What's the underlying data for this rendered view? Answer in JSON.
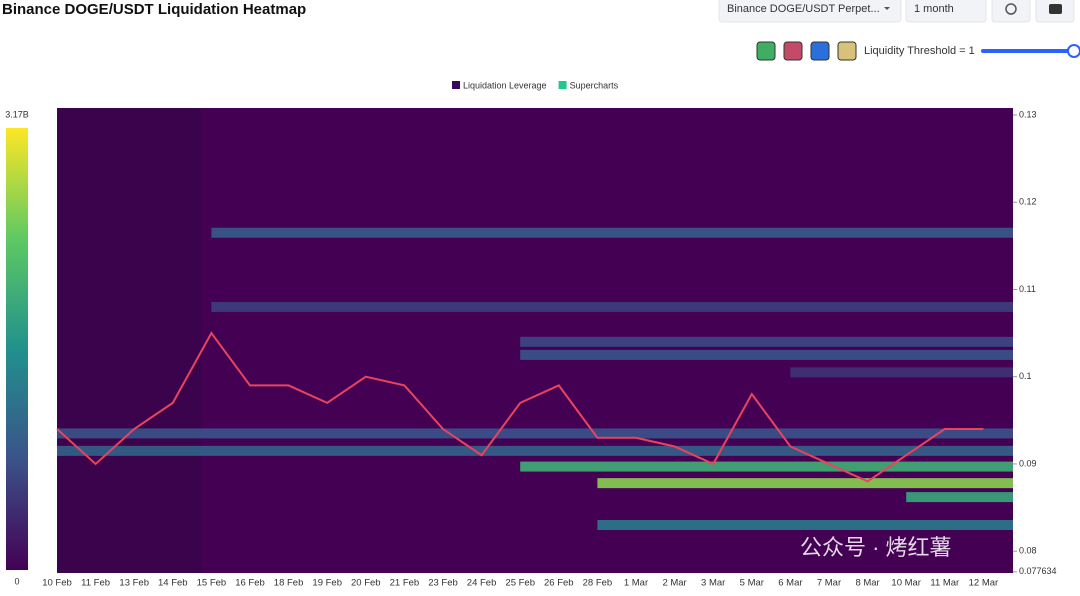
{
  "chart_data": {
    "type": "heatmap",
    "title": "Binance DOGE/USDT Liquidation Heatmap",
    "controls": {
      "pair": "Binance DOGE/USDT Perpet...",
      "range": "1 month",
      "threshold": "Liquidity Threshold = 1"
    },
    "legend": [
      {
        "name": "Liquidation Leverage",
        "color": "#3b0a57"
      },
      {
        "name": "Supercharts",
        "color": "#1ec98b"
      }
    ],
    "watermark": "公众号 · 烤红薯",
    "categories": [
      "10 Feb",
      "11 Feb",
      "13 Feb",
      "14 Feb",
      "15 Feb",
      "16 Feb",
      "18 Feb",
      "19 Feb",
      "20 Feb",
      "21 Feb",
      "23 Feb",
      "24 Feb",
      "25 Feb",
      "26 Feb",
      "28 Feb",
      "1 Mar",
      "2 Mar",
      "3 Mar",
      "5 Mar",
      "6 Mar",
      "7 Mar",
      "8 Mar",
      "10 Mar",
      "11 Mar",
      "12 Mar"
    ],
    "price": {
      "color": "#e9435e",
      "values": [
        0.094,
        0.09,
        0.094,
        0.097,
        0.105,
        0.099,
        0.099,
        0.097,
        0.1,
        0.099,
        0.094,
        0.091,
        0.097,
        0.099,
        0.093,
        0.093,
        0.092,
        0.09,
        0.098,
        0.092,
        0.09,
        0.088,
        0.091,
        0.094,
        0.094
      ]
    },
    "colormap": [
      "#440154",
      "#3b528b",
      "#21918c",
      "#5ec962",
      "#fde725"
    ],
    "clim": [
      0,
      3170000000
    ],
    "cticks": [
      {
        "value": 3170000000,
        "label": "3.17B"
      },
      0
    ],
    "bands": [
      {
        "y": 0.1165,
        "start": 4,
        "value": 900000000
      },
      {
        "y": 0.108,
        "start": 4,
        "value": 600000000
      },
      {
        "y": 0.104,
        "start": 12,
        "value": 700000000
      },
      {
        "y": 0.1025,
        "start": 12,
        "value": 800000000
      },
      {
        "y": 0.1005,
        "start": 19,
        "value": 500000000
      },
      {
        "y": 0.0935,
        "start": 0,
        "value": 800000000
      },
      {
        "y": 0.0915,
        "start": 0,
        "value": 1000000000
      },
      {
        "y": 0.0897,
        "start": 12,
        "value": 2000000000
      },
      {
        "y": 0.0878,
        "start": 14,
        "value": 2600000000
      },
      {
        "y": 0.0862,
        "start": 22,
        "value": 1900000000
      },
      {
        "y": 0.083,
        "start": 14,
        "value": 1300000000
      }
    ],
    "ylim": [
      0.0775,
      0.1308
    ],
    "yticks": [
      0.13,
      0.12,
      0.11,
      0.1,
      0.09,
      0.08,
      0.077634
    ]
  }
}
